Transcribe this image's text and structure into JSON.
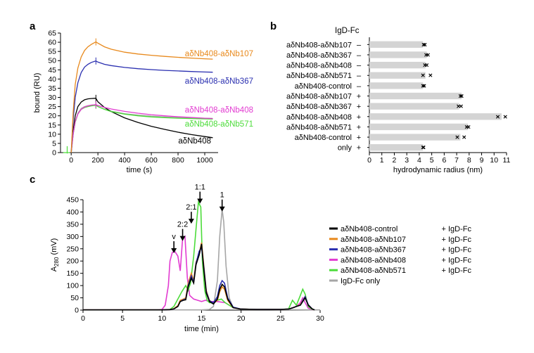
{
  "panels": {
    "a": "a",
    "b": "b",
    "c": "c"
  },
  "colors": {
    "axis": "#000000",
    "orange": "#e8891c",
    "blue": "#2a2fb0",
    "magenta": "#e23bd1",
    "green": "#4cdc3a",
    "black": "#000000",
    "gray": "#a6a6a6",
    "bar": "#d4d4d4"
  },
  "chart_data": [
    {
      "id": "a",
      "type": "line",
      "xlabel": "time (s)",
      "ylabel": "bound (RU)",
      "xlim": [
        -80,
        1100
      ],
      "ylim": [
        0,
        65
      ],
      "xticks": [
        0,
        200,
        400,
        600,
        800,
        1000
      ],
      "yticks": [
        0,
        5,
        10,
        15,
        20,
        25,
        30,
        35,
        40,
        45,
        50,
        55,
        60,
        65
      ],
      "series": [
        {
          "name": "aδNb408-aδNb107",
          "color": "orange",
          "x": [
            0,
            15,
            30,
            50,
            75,
            100,
            125,
            150,
            175,
            185,
            200,
            250,
            300,
            400,
            500,
            600,
            700,
            800,
            900,
            1000,
            1060
          ],
          "y": [
            0,
            22,
            37,
            46,
            52,
            55.5,
            57.5,
            58.8,
            59.8,
            60.2,
            59.5,
            57.5,
            56.2,
            54.6,
            53.6,
            52.9,
            52.3,
            51.8,
            51.4,
            51.0,
            50.8
          ]
        },
        {
          "name": "aδNb408-aδNb367",
          "color": "blue",
          "x": [
            0,
            15,
            30,
            50,
            75,
            100,
            125,
            150,
            175,
            185,
            200,
            250,
            300,
            400,
            500,
            600,
            700,
            800,
            900,
            1000,
            1060
          ],
          "y": [
            0,
            18,
            30,
            38,
            43.5,
            46.5,
            48,
            49,
            49.6,
            49.8,
            49.2,
            48,
            47.3,
            46.3,
            45.6,
            45.1,
            44.7,
            44.4,
            44.1,
            43.8,
            43.7
          ]
        },
        {
          "name": "aδNb408-aδNb408",
          "color": "magenta",
          "x": [
            0,
            15,
            30,
            50,
            75,
            100,
            125,
            150,
            175,
            185,
            200,
            250,
            300,
            400,
            500,
            600,
            700,
            800,
            900,
            1000,
            1060
          ],
          "y": [
            0,
            10,
            17,
            21,
            23.5,
            24.8,
            25.4,
            25.8,
            26,
            26.1,
            25.6,
            24.6,
            23.7,
            22.4,
            21.4,
            20.6,
            20,
            19.5,
            19.1,
            18.7,
            18.5
          ]
        },
        {
          "name": "aδNb408-aδNb571",
          "color": "green",
          "x": [
            0,
            15,
            30,
            50,
            75,
            100,
            125,
            150,
            175,
            185,
            200,
            250,
            300,
            400,
            500,
            600,
            700,
            800,
            900,
            1000,
            1060
          ],
          "y": [
            0,
            10,
            16.5,
            21,
            23.5,
            24.5,
            25,
            25.4,
            25.6,
            25.7,
            25,
            23.5,
            22.3,
            20.9,
            20,
            19.4,
            19,
            18.7,
            18.5,
            18.3,
            18.2
          ]
        },
        {
          "name": "aδNb408",
          "color": "black",
          "x": [
            0,
            15,
            30,
            50,
            75,
            100,
            125,
            150,
            175,
            185,
            200,
            250,
            300,
            400,
            500,
            600,
            700,
            800,
            900,
            1000,
            1060
          ],
          "y": [
            0,
            12,
            20,
            25,
            27.5,
            28.7,
            29.2,
            29.4,
            29.5,
            29.5,
            27.6,
            24.5,
            22.3,
            18.9,
            16.4,
            14.3,
            12.6,
            11.1,
            9.8,
            8.7,
            8.1
          ]
        },
        {
          "name": "",
          "color": "gray",
          "x": [
            0,
            15,
            30,
            50,
            75,
            100,
            125,
            150,
            175,
            185,
            200,
            250,
            300,
            400,
            500,
            600,
            700,
            800,
            900,
            1000,
            1060
          ],
          "y": [
            0,
            10,
            16.5,
            21.5,
            24,
            25,
            25.5,
            25.8,
            26,
            26,
            25,
            23.5,
            22.5,
            21.2,
            20.4,
            19.8,
            19.4,
            19.1,
            18.9,
            18.7,
            18.6
          ]
        }
      ]
    },
    {
      "id": "b",
      "type": "bar",
      "orientation": "horizontal",
      "header": "IgD-Fc",
      "xlabel": "hydrodynamic radius (nm)",
      "xlim": [
        0,
        11
      ],
      "xticks": [
        0,
        1,
        2,
        3,
        4,
        5,
        6,
        7,
        8,
        9,
        10,
        11
      ],
      "rows": [
        {
          "label": "aδNb408-aδNb107",
          "igd": "–",
          "value": 4.3,
          "points": [
            4.35,
            4.45
          ]
        },
        {
          "label": "aδNb408-aδNb367",
          "igd": "–",
          "value": 4.6,
          "points": [
            4.55,
            4.7
          ]
        },
        {
          "label": "aδNb408-aδNb408",
          "igd": "–",
          "value": 4.5,
          "points": [
            4.45,
            4.6
          ]
        },
        {
          "label": "aδNb408-aδNb571",
          "igd": "–",
          "value": 4.5,
          "points": [
            4.3,
            4.9
          ]
        },
        {
          "label": "aδNb408-control",
          "igd": "–",
          "value": 4.3,
          "points": [
            4.3,
            4.4
          ]
        },
        {
          "label": "aδNb408-aδNb107",
          "igd": "+",
          "value": 7.4,
          "points": [
            7.3,
            7.4
          ]
        },
        {
          "label": "aδNb408-aδNb367",
          "igd": "+",
          "value": 7.2,
          "points": [
            7.15,
            7.35
          ]
        },
        {
          "label": "aδNb408-aδNb408",
          "igd": "+",
          "value": 10.6,
          "points": [
            10.3,
            10.9
          ]
        },
        {
          "label": "aδNb408-aδNb571",
          "igd": "+",
          "value": 7.9,
          "points": [
            7.8,
            7.95
          ]
        },
        {
          "label": "aδNb408-control",
          "igd": "+",
          "value": 7.3,
          "points": [
            7.05,
            7.6
          ]
        },
        {
          "label": "only",
          "igd": "+",
          "value": 4.3,
          "points": [
            4.3,
            4.35
          ]
        }
      ]
    },
    {
      "id": "c",
      "type": "line",
      "xlabel": "time (min)",
      "ylabel": "A280 (mV)",
      "ylabel_main": "A",
      "ylabel_sub": "280",
      "ylabel_rest": " (mV)",
      "xlim": [
        0,
        30
      ],
      "ylim": [
        0,
        450
      ],
      "xticks": [
        0,
        5,
        10,
        15,
        20,
        25,
        30
      ],
      "yticks": [
        0,
        50,
        100,
        150,
        200,
        250,
        300,
        350,
        400,
        450
      ],
      "annotations": [
        {
          "text": "v",
          "x": 11.5,
          "y": 255
        },
        {
          "text": "2:2",
          "x": 12.6,
          "y": 305
        },
        {
          "text": "2:1",
          "x": 13.7,
          "y": 375
        },
        {
          "text": "1:1",
          "x": 14.8,
          "y": 457
        },
        {
          "text": "1",
          "x": 17.6,
          "y": 425
        }
      ],
      "series": [
        {
          "name": "aδNb408-control",
          "suffix": "+ IgD-Fc",
          "color": "black",
          "x": [
            0,
            10,
            11,
            11.5,
            12,
            12.3,
            12.7,
            13,
            13.3,
            13.7,
            14,
            14.3,
            14.7,
            15,
            15.3,
            15.6,
            16,
            16.5,
            17,
            17.3,
            17.6,
            17.9,
            18.3,
            19,
            20,
            22,
            25,
            26,
            26.6,
            27,
            27.5,
            27.8,
            28.1,
            28.5,
            29,
            29.3
          ],
          "y": [
            1,
            1,
            2,
            5,
            15,
            35,
            40,
            42,
            95,
            130,
            110,
            185,
            225,
            270,
            160,
            70,
            35,
            25,
            45,
            85,
            105,
            95,
            45,
            10,
            4,
            3,
            3,
            4,
            10,
            15,
            20,
            35,
            50,
            20,
            5,
            1
          ]
        },
        {
          "name": "aδNb408-aδNb107",
          "suffix": "+ IgD-Fc",
          "color": "orange",
          "x": [
            0,
            10,
            11,
            11.5,
            12,
            12.3,
            12.7,
            13,
            13.3,
            13.7,
            14,
            14.3,
            14.7,
            15,
            15.3,
            15.6,
            16,
            16.5,
            17,
            17.3,
            17.6,
            17.9,
            18.3,
            19,
            20,
            22,
            25,
            26,
            26.6,
            27,
            27.5,
            27.8,
            28.1,
            28.5,
            29,
            29.3
          ],
          "y": [
            1,
            1,
            2,
            6,
            18,
            40,
            45,
            50,
            110,
            150,
            120,
            195,
            230,
            275,
            175,
            80,
            40,
            28,
            40,
            75,
            95,
            85,
            40,
            10,
            4,
            3,
            3,
            4,
            10,
            15,
            22,
            40,
            55,
            22,
            5,
            1
          ]
        },
        {
          "name": "aδNb408-aδNb367",
          "suffix": "+ IgD-Fc",
          "color": "blue",
          "x": [
            0,
            10,
            11,
            11.5,
            12,
            12.3,
            12.7,
            13,
            13.3,
            13.7,
            14,
            14.3,
            14.7,
            15,
            15.3,
            15.6,
            16,
            16.5,
            17,
            17.3,
            17.6,
            17.9,
            18.3,
            19,
            20,
            22,
            25,
            26,
            26.6,
            27,
            27.5,
            27.8,
            28.1,
            28.5,
            29,
            29.3
          ],
          "y": [
            1,
            1,
            2,
            5,
            15,
            35,
            42,
            45,
            100,
            140,
            115,
            190,
            240,
            255,
            170,
            75,
            38,
            30,
            55,
            100,
            120,
            110,
            50,
            12,
            4,
            3,
            3,
            4,
            10,
            15,
            20,
            38,
            55,
            22,
            5,
            1
          ]
        },
        {
          "name": "aδNb408-aδNb408",
          "suffix": "+ IgD-Fc",
          "color": "magenta",
          "x": [
            0,
            9.5,
            10,
            10.4,
            10.8,
            11,
            11.3,
            11.6,
            12,
            12.3,
            12.6,
            12.9,
            13.2,
            13.5,
            14,
            14.5,
            15,
            15.5,
            16,
            17,
            18,
            19,
            20,
            22,
            25,
            26,
            27,
            27.5,
            27.8,
            28.1,
            28.5,
            29,
            29.3
          ],
          "y": [
            1,
            1,
            3,
            20,
            100,
            200,
            235,
            240,
            220,
            160,
            290,
            300,
            130,
            60,
            45,
            40,
            35,
            40,
            35,
            35,
            30,
            10,
            4,
            3,
            3,
            4,
            15,
            30,
            50,
            30,
            8,
            2,
            1
          ]
        },
        {
          "name": "aδNb408-aδNb571",
          "suffix": "+ IgD-Fc",
          "color": "green",
          "x": [
            0,
            10,
            11,
            11.5,
            12,
            12.5,
            13,
            13.3,
            13.6,
            14,
            14.3,
            14.6,
            14.9,
            15.1,
            15.4,
            15.7,
            16,
            16.5,
            17,
            17.5,
            18,
            19,
            20,
            22,
            25,
            26,
            26.5,
            27,
            27.5,
            27.8,
            28.1,
            28.5,
            29,
            29.3
          ],
          "y": [
            1,
            1,
            3,
            15,
            45,
            75,
            100,
            80,
            110,
            220,
            330,
            440,
            420,
            200,
            80,
            40,
            30,
            30,
            40,
            45,
            30,
            10,
            4,
            3,
            3,
            5,
            40,
            20,
            60,
            85,
            65,
            15,
            3,
            1
          ]
        },
        {
          "name": "IgD-Fc only",
          "suffix": "",
          "color": "gray",
          "x": [
            0,
            15,
            16,
            16.5,
            17,
            17.3,
            17.6,
            17.8,
            18.1,
            18.5,
            19,
            20,
            30
          ],
          "y": [
            1,
            1,
            3,
            15,
            120,
            300,
            410,
            360,
            180,
            50,
            10,
            3,
            1
          ]
        }
      ]
    }
  ]
}
